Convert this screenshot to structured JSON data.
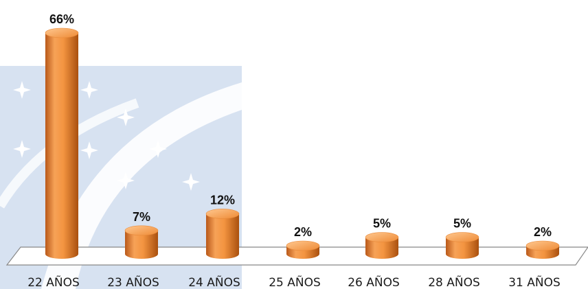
{
  "chart_data": {
    "type": "bar",
    "title": "",
    "xlabel": "",
    "ylabel": "",
    "categories": [
      "22 AÑOS",
      "23 AÑOS",
      "24 AÑOS",
      "25 AÑOS",
      "26 AÑOS",
      "28 AÑOS",
      "31 AÑOS"
    ],
    "values": [
      66,
      7,
      12,
      2,
      5,
      5,
      2
    ],
    "value_labels": [
      "66%",
      "7%",
      "12%",
      "2%",
      "5%",
      "5%",
      "2%"
    ],
    "ylim": [
      0,
      70
    ],
    "grid": false,
    "style": "3d-cylinder",
    "bar_color": "#f0913a",
    "watermark_color": "#c9d6ea"
  }
}
